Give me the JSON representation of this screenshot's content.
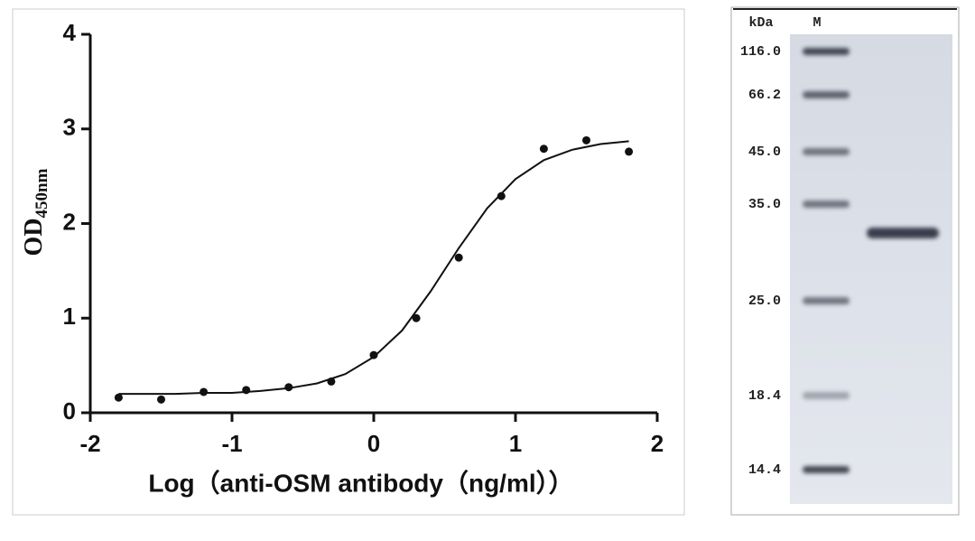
{
  "chart_data": {
    "type": "scatter",
    "x": [
      -1.8,
      -1.5,
      -1.2,
      -0.9,
      -0.6,
      -0.3,
      0,
      0.3,
      0.6,
      0.9,
      1.2,
      1.5,
      1.8
    ],
    "values": [
      0.16,
      0.14,
      0.22,
      0.24,
      0.27,
      0.33,
      0.61,
      1.0,
      1.64,
      2.29,
      2.79,
      2.88,
      2.76
    ],
    "color": "#111111",
    "fit": {
      "x": [
        -1.8,
        -1.6,
        -1.4,
        -1.2,
        -1.0,
        -0.8,
        -0.6,
        -0.4,
        -0.2,
        0,
        0.2,
        0.4,
        0.6,
        0.8,
        1.0,
        1.2,
        1.4,
        1.6,
        1.8
      ],
      "values": [
        0.2,
        0.2,
        0.2,
        0.21,
        0.21,
        0.23,
        0.26,
        0.31,
        0.41,
        0.59,
        0.87,
        1.28,
        1.74,
        2.16,
        2.47,
        2.67,
        2.78,
        2.84,
        2.87
      ]
    },
    "xlabel": "Log（anti-OSM antibody（ng/ml））",
    "ylabel": "OD",
    "ylabel_sub": "450nm",
    "xlim": [
      -2,
      2
    ],
    "xticks": [
      -2,
      -1,
      0,
      1,
      2
    ],
    "ylim": [
      0,
      4
    ],
    "yticks": [
      0,
      1,
      2,
      3,
      4
    ]
  },
  "gel": {
    "unit_label": "kDa",
    "lane_label": "M",
    "markers": [
      "116.0",
      "66.2",
      "45.0",
      "35.0",
      "25.0",
      "18.4",
      "14.4"
    ]
  }
}
